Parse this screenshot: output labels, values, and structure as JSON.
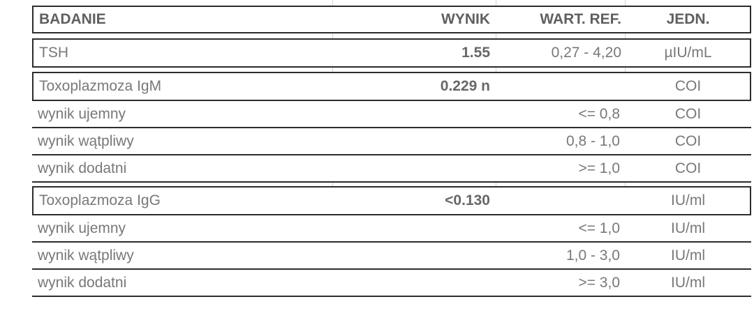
{
  "table": {
    "columns": {
      "badanie": "BADANIE",
      "wynik": "WYNIK",
      "ref": "WART. REF.",
      "jedn": "JEDN."
    },
    "rows": [
      {
        "type": "main",
        "badanie": "TSH",
        "wynik": "1.55",
        "ref": "0,27 - 4,20",
        "jedn": "µIU/mL"
      },
      {
        "type": "main",
        "badanie": "Toxoplazmoza IgM",
        "wynik": "0.229 n",
        "ref": "",
        "jedn": "COI"
      },
      {
        "type": "sub",
        "badanie": "wynik ujemny",
        "wynik": "",
        "ref": "<= 0,8",
        "jedn": "COI"
      },
      {
        "type": "sub",
        "badanie": "wynik wątpliwy",
        "wynik": "",
        "ref": "0,8 - 1,0",
        "jedn": "COI"
      },
      {
        "type": "sub",
        "badanie": "wynik dodatni",
        "wynik": "",
        "ref": ">= 1,0",
        "jedn": "COI"
      },
      {
        "type": "main",
        "badanie": "Toxoplazmoza IgG",
        "wynik": "<0.130",
        "ref": "",
        "jedn": "IU/ml"
      },
      {
        "type": "sub",
        "badanie": "wynik ujemny",
        "wynik": "",
        "ref": "<= 1,0",
        "jedn": "IU/ml"
      },
      {
        "type": "sub",
        "badanie": "wynik wątpliwy",
        "wynik": "",
        "ref": "1,0 - 3,0",
        "jedn": "IU/ml"
      },
      {
        "type": "sub",
        "badanie": "wynik dodatni",
        "wynik": "",
        "ref": ">= 3,0",
        "jedn": "IU/ml"
      }
    ],
    "colors": {
      "border_dark": "#2c2c2c",
      "grid_light": "#d2d2d2",
      "text_regular": "#787878",
      "text_bold_value": "#676767",
      "text_header": "#5f5f5f",
      "background": "#ffffff"
    }
  }
}
